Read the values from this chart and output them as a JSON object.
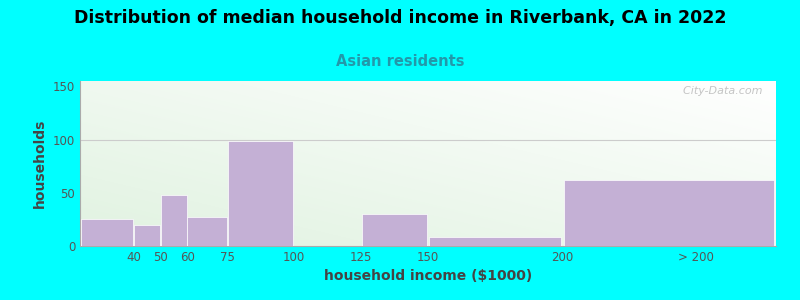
{
  "title": "Distribution of median household income in Riverbank, CA in 2022",
  "subtitle": "Asian residents",
  "xlabel": "household income ($1000)",
  "ylabel": "households",
  "background_outer": "#00FFFF",
  "bar_color": "#C4B0D5",
  "title_fontsize": 12.5,
  "subtitle_fontsize": 10.5,
  "subtitle_color": "#2299AA",
  "label_fontsize": 10,
  "watermark": "  City-Data.com",
  "values": [
    25,
    20,
    48,
    27,
    99,
    0,
    30,
    8,
    62
  ],
  "bar_lefts": [
    20,
    40,
    50,
    60,
    75,
    100,
    125,
    150,
    200
  ],
  "bar_widths": [
    20,
    10,
    10,
    15,
    25,
    25,
    25,
    50,
    80
  ],
  "xlim": [
    20,
    280
  ],
  "ylim": [
    0,
    155
  ],
  "yticks": [
    0,
    50,
    100,
    150
  ],
  "xtick_positions": [
    40,
    50,
    60,
    75,
    100,
    125,
    150,
    200,
    250
  ],
  "xtick_labels": [
    "40",
    "50",
    "60",
    "75",
    "100",
    "125",
    "150",
    "200",
    "> 200"
  ]
}
